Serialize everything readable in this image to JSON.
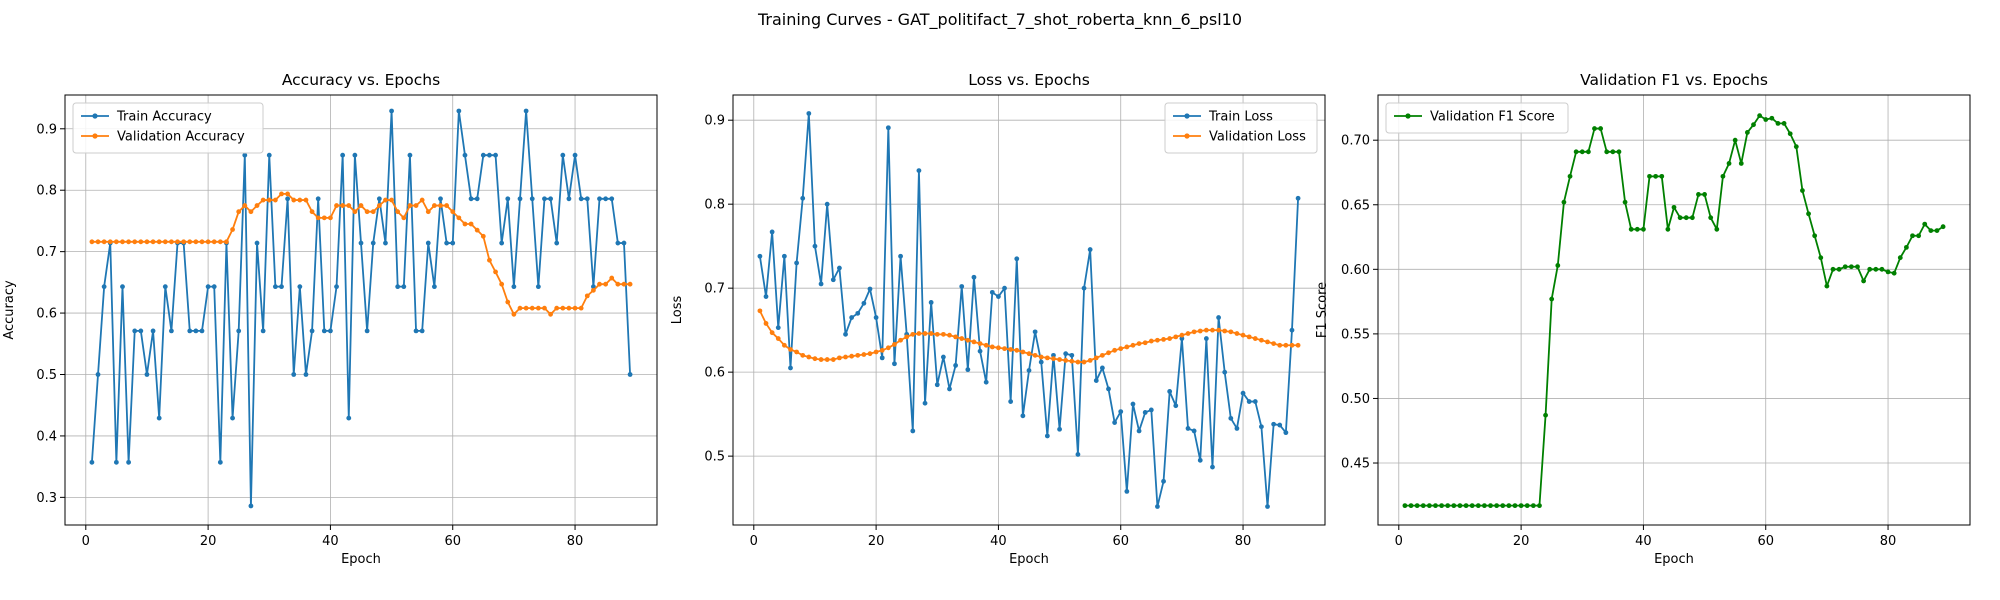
{
  "figure_title": "Training Curves - GAT_politifact_7_shot_roberta_knn_6_psl10",
  "chart_data": [
    {
      "type": "line",
      "title": "Accuracy vs. Epochs",
      "xlabel": "Epoch",
      "ylabel": "Accuracy",
      "xlim": [
        -3.4,
        93.4
      ],
      "ylim": [
        0.255,
        0.955
      ],
      "xticks": [
        0,
        20,
        40,
        60,
        80
      ],
      "yticks": [
        0.3,
        0.4,
        0.5,
        0.6,
        0.7,
        0.8,
        0.9
      ],
      "ytick_labels": [
        "0.3",
        "0.4",
        "0.5",
        "0.6",
        "0.7",
        "0.8",
        "0.9"
      ],
      "grid": true,
      "legend_position": "upper-left",
      "x": [
        1,
        2,
        3,
        4,
        5,
        6,
        7,
        8,
        9,
        10,
        11,
        12,
        13,
        14,
        15,
        16,
        17,
        18,
        19,
        20,
        21,
        22,
        23,
        24,
        25,
        26,
        27,
        28,
        29,
        30,
        31,
        32,
        33,
        34,
        35,
        36,
        37,
        38,
        39,
        40,
        41,
        42,
        43,
        44,
        45,
        46,
        47,
        48,
        49,
        50,
        51,
        52,
        53,
        54,
        55,
        56,
        57,
        58,
        59,
        60,
        61,
        62,
        63,
        64,
        65,
        66,
        67,
        68,
        69,
        70,
        71,
        72,
        73,
        74,
        75,
        76,
        77,
        78,
        79,
        80,
        81,
        82,
        83,
        84,
        85,
        86,
        87,
        88,
        89
      ],
      "series": [
        {
          "name": "Train Accuracy",
          "color": "#1f77b4",
          "values": [
            0.357,
            0.5,
            0.643,
            0.714,
            0.357,
            0.643,
            0.357,
            0.571,
            0.571,
            0.5,
            0.571,
            0.429,
            0.643,
            0.571,
            0.714,
            0.714,
            0.571,
            0.571,
            0.571,
            0.643,
            0.643,
            0.357,
            0.714,
            0.429,
            0.571,
            0.857,
            0.286,
            0.714,
            0.571,
            0.857,
            0.643,
            0.643,
            0.786,
            0.5,
            0.643,
            0.5,
            0.571,
            0.786,
            0.571,
            0.571,
            0.643,
            0.857,
            0.429,
            0.857,
            0.714,
            0.571,
            0.714,
            0.786,
            0.714,
            0.929,
            0.643,
            0.643,
            0.857,
            0.571,
            0.571,
            0.714,
            0.643,
            0.786,
            0.714,
            0.714,
            0.929,
            0.857,
            0.786,
            0.786,
            0.857,
            0.857,
            0.857,
            0.714,
            0.786,
            0.643,
            0.786,
            0.929,
            0.786,
            0.643,
            0.786,
            0.786,
            0.714,
            0.857,
            0.786,
            0.857,
            0.786,
            0.786,
            0.643,
            0.786,
            0.786,
            0.786,
            0.714,
            0.714,
            0.5
          ]
        },
        {
          "name": "Validation Accuracy",
          "color": "#ff7f0e",
          "values": [
            0.716,
            0.716,
            0.716,
            0.716,
            0.716,
            0.716,
            0.716,
            0.716,
            0.716,
            0.716,
            0.716,
            0.716,
            0.716,
            0.716,
            0.716,
            0.716,
            0.716,
            0.716,
            0.716,
            0.716,
            0.716,
            0.716,
            0.716,
            0.736,
            0.765,
            0.775,
            0.765,
            0.775,
            0.784,
            0.784,
            0.784,
            0.794,
            0.794,
            0.784,
            0.784,
            0.784,
            0.765,
            0.755,
            0.755,
            0.755,
            0.775,
            0.775,
            0.775,
            0.765,
            0.775,
            0.765,
            0.765,
            0.775,
            0.784,
            0.784,
            0.765,
            0.755,
            0.775,
            0.775,
            0.784,
            0.765,
            0.775,
            0.775,
            0.775,
            0.765,
            0.755,
            0.745,
            0.745,
            0.735,
            0.725,
            0.686,
            0.667,
            0.647,
            0.618,
            0.598,
            0.608,
            0.608,
            0.608,
            0.608,
            0.608,
            0.598,
            0.608,
            0.608,
            0.608,
            0.608,
            0.608,
            0.628,
            0.637,
            0.647,
            0.647,
            0.657,
            0.647,
            0.647,
            0.647
          ]
        }
      ]
    },
    {
      "type": "line",
      "title": "Loss vs. Epochs",
      "xlabel": "Epoch",
      "ylabel": "Loss",
      "xlim": [
        -3.4,
        93.4
      ],
      "ylim": [
        0.418,
        0.93
      ],
      "xticks": [
        0,
        20,
        40,
        60,
        80
      ],
      "yticks": [
        0.5,
        0.6,
        0.7,
        0.8,
        0.9
      ],
      "ytick_labels": [
        "0.5",
        "0.6",
        "0.7",
        "0.8",
        "0.9"
      ],
      "grid": true,
      "legend_position": "upper-right",
      "x": [
        1,
        2,
        3,
        4,
        5,
        6,
        7,
        8,
        9,
        10,
        11,
        12,
        13,
        14,
        15,
        16,
        17,
        18,
        19,
        20,
        21,
        22,
        23,
        24,
        25,
        26,
        27,
        28,
        29,
        30,
        31,
        32,
        33,
        34,
        35,
        36,
        37,
        38,
        39,
        40,
        41,
        42,
        43,
        44,
        45,
        46,
        47,
        48,
        49,
        50,
        51,
        52,
        53,
        54,
        55,
        56,
        57,
        58,
        59,
        60,
        61,
        62,
        63,
        64,
        65,
        66,
        67,
        68,
        69,
        70,
        71,
        72,
        73,
        74,
        75,
        76,
        77,
        78,
        79,
        80,
        81,
        82,
        83,
        84,
        85,
        86,
        87,
        88,
        89
      ],
      "series": [
        {
          "name": "Train Loss",
          "color": "#1f77b4",
          "values": [
            0.738,
            0.69,
            0.767,
            0.653,
            0.738,
            0.605,
            0.73,
            0.807,
            0.908,
            0.75,
            0.705,
            0.8,
            0.71,
            0.724,
            0.645,
            0.665,
            0.67,
            0.682,
            0.699,
            0.665,
            0.617,
            0.891,
            0.61,
            0.738,
            0.645,
            0.53,
            0.84,
            0.563,
            0.683,
            0.585,
            0.618,
            0.58,
            0.608,
            0.702,
            0.603,
            0.713,
            0.625,
            0.588,
            0.695,
            0.69,
            0.7,
            0.565,
            0.735,
            0.548,
            0.602,
            0.648,
            0.612,
            0.524,
            0.62,
            0.532,
            0.622,
            0.62,
            0.502,
            0.7,
            0.746,
            0.59,
            0.605,
            0.58,
            0.54,
            0.553,
            0.458,
            0.562,
            0.53,
            0.552,
            0.555,
            0.44,
            0.47,
            0.577,
            0.56,
            0.64,
            0.533,
            0.53,
            0.495,
            0.64,
            0.487,
            0.665,
            0.6,
            0.545,
            0.533,
            0.575,
            0.565,
            0.565,
            0.535,
            0.44,
            0.538,
            0.537,
            0.528,
            0.65,
            0.807
          ]
        },
        {
          "name": "Validation Loss",
          "color": "#ff7f0e",
          "values": [
            0.673,
            0.658,
            0.647,
            0.64,
            0.632,
            0.627,
            0.624,
            0.62,
            0.618,
            0.616,
            0.615,
            0.615,
            0.615,
            0.617,
            0.618,
            0.619,
            0.62,
            0.621,
            0.622,
            0.624,
            0.626,
            0.629,
            0.633,
            0.638,
            0.642,
            0.645,
            0.646,
            0.646,
            0.646,
            0.645,
            0.645,
            0.644,
            0.642,
            0.64,
            0.638,
            0.636,
            0.634,
            0.632,
            0.63,
            0.629,
            0.628,
            0.627,
            0.626,
            0.624,
            0.622,
            0.62,
            0.618,
            0.617,
            0.616,
            0.615,
            0.614,
            0.613,
            0.612,
            0.612,
            0.614,
            0.617,
            0.62,
            0.623,
            0.626,
            0.628,
            0.63,
            0.632,
            0.634,
            0.635,
            0.637,
            0.638,
            0.639,
            0.64,
            0.642,
            0.644,
            0.646,
            0.648,
            0.649,
            0.65,
            0.65,
            0.65,
            0.649,
            0.648,
            0.646,
            0.644,
            0.642,
            0.64,
            0.638,
            0.636,
            0.634,
            0.632,
            0.632,
            0.632,
            0.632
          ]
        }
      ]
    },
    {
      "type": "line",
      "title": "Validation F1 vs. Epochs",
      "xlabel": "Epoch",
      "ylabel": "F1 Score",
      "xlim": [
        -3.4,
        93.4
      ],
      "ylim": [
        0.402,
        0.735
      ],
      "xticks": [
        0,
        20,
        40,
        60,
        80
      ],
      "yticks": [
        0.45,
        0.5,
        0.55,
        0.6,
        0.65,
        0.7
      ],
      "ytick_labels": [
        "0.45",
        "0.50",
        "0.55",
        "0.60",
        "0.65",
        "0.70"
      ],
      "grid": true,
      "legend_position": "upper-left",
      "x": [
        1,
        2,
        3,
        4,
        5,
        6,
        7,
        8,
        9,
        10,
        11,
        12,
        13,
        14,
        15,
        16,
        17,
        18,
        19,
        20,
        21,
        22,
        23,
        24,
        25,
        26,
        27,
        28,
        29,
        30,
        31,
        32,
        33,
        34,
        35,
        36,
        37,
        38,
        39,
        40,
        41,
        42,
        43,
        44,
        45,
        46,
        47,
        48,
        49,
        50,
        51,
        52,
        53,
        54,
        55,
        56,
        57,
        58,
        59,
        60,
        61,
        62,
        63,
        64,
        65,
        66,
        67,
        68,
        69,
        70,
        71,
        72,
        73,
        74,
        75,
        76,
        77,
        78,
        79,
        80,
        81,
        82,
        83,
        84,
        85,
        86,
        87,
        88,
        89
      ],
      "series": [
        {
          "name": "Validation F1 Score",
          "color": "#008000",
          "values": [
            0.417,
            0.417,
            0.417,
            0.417,
            0.417,
            0.417,
            0.417,
            0.417,
            0.417,
            0.417,
            0.417,
            0.417,
            0.417,
            0.417,
            0.417,
            0.417,
            0.417,
            0.417,
            0.417,
            0.417,
            0.417,
            0.417,
            0.417,
            0.487,
            0.577,
            0.603,
            0.652,
            0.672,
            0.691,
            0.691,
            0.691,
            0.709,
            0.709,
            0.691,
            0.691,
            0.691,
            0.652,
            0.631,
            0.631,
            0.631,
            0.672,
            0.672,
            0.672,
            0.631,
            0.648,
            0.64,
            0.64,
            0.64,
            0.658,
            0.658,
            0.64,
            0.631,
            0.672,
            0.682,
            0.7,
            0.682,
            0.706,
            0.712,
            0.719,
            0.716,
            0.717,
            0.713,
            0.713,
            0.705,
            0.695,
            0.661,
            0.643,
            0.626,
            0.609,
            0.587,
            0.6,
            0.6,
            0.602,
            0.602,
            0.602,
            0.591,
            0.6,
            0.6,
            0.6,
            0.598,
            0.597,
            0.609,
            0.617,
            0.626,
            0.626,
            0.635,
            0.63,
            0.63,
            0.633
          ]
        }
      ]
    }
  ]
}
